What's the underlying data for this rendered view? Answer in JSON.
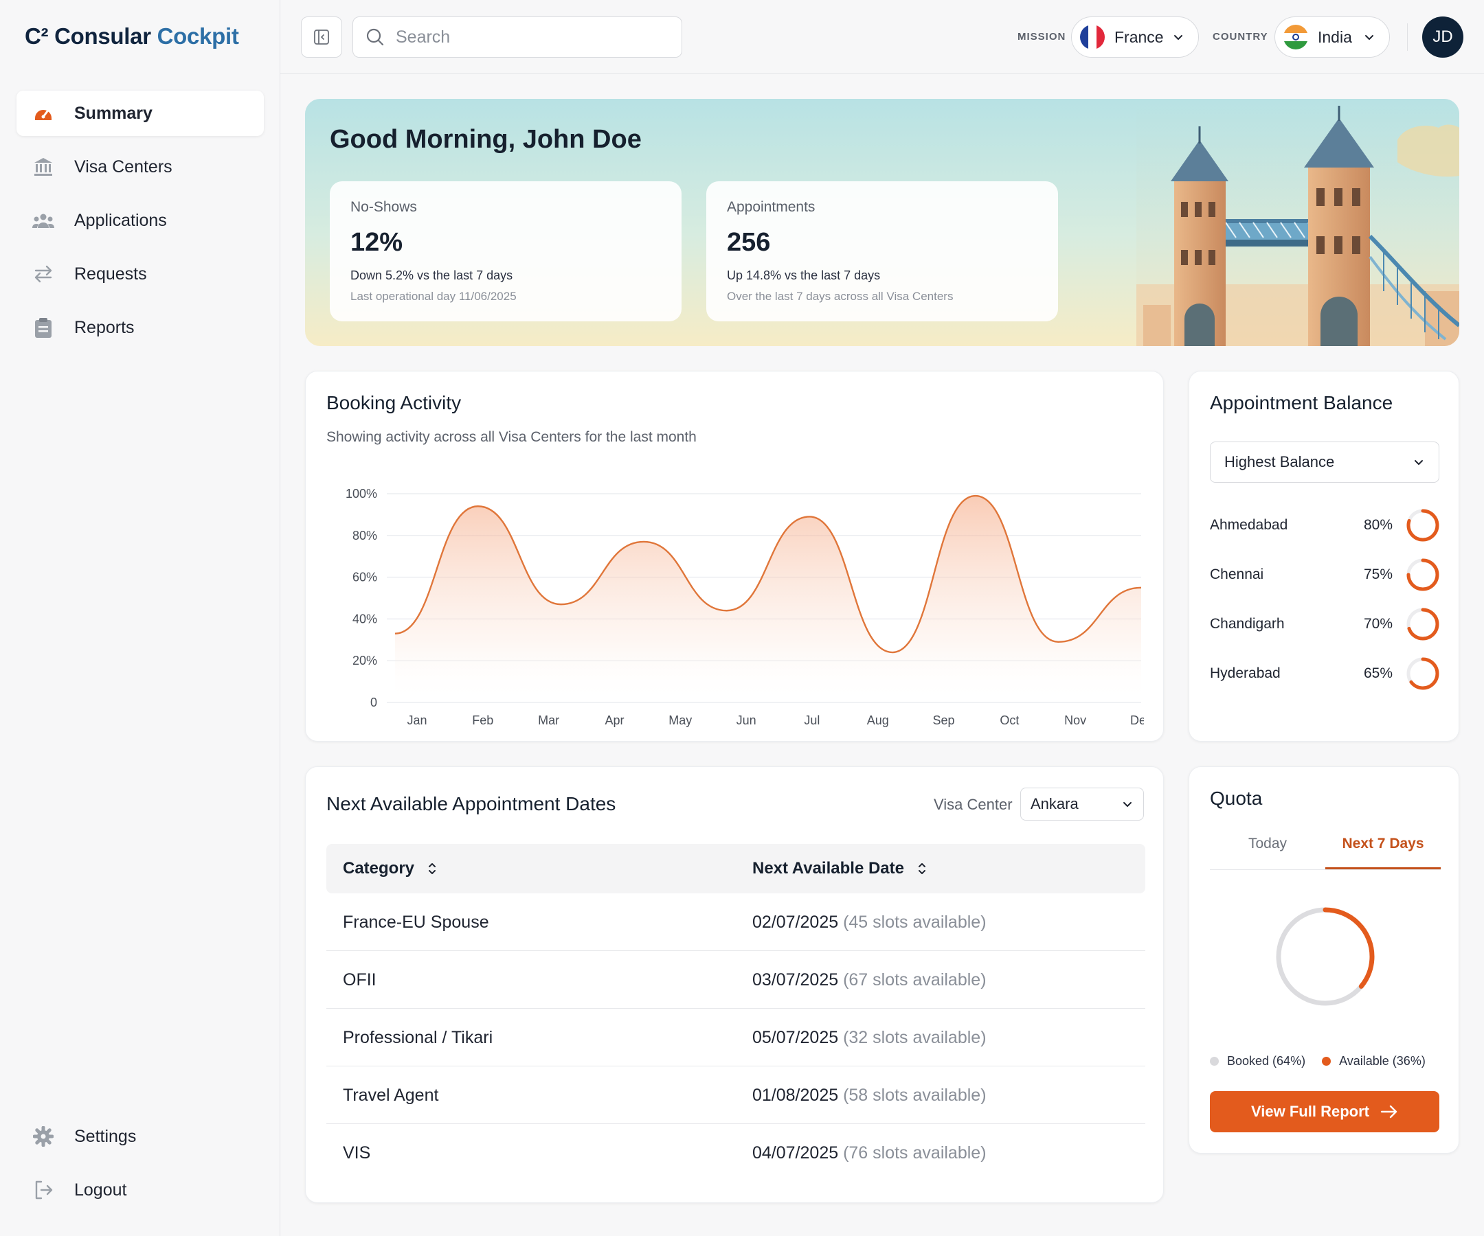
{
  "app": {
    "logo_prefix": "C²",
    "logo_name": "Consular",
    "logo_accent": "Cockpit"
  },
  "sidebar": {
    "items": [
      {
        "label": "Summary",
        "icon": "speedometer-icon",
        "active": true
      },
      {
        "label": "Visa Centers",
        "icon": "bank-icon"
      },
      {
        "label": "Applications",
        "icon": "users-icon"
      },
      {
        "label": "Requests",
        "icon": "arrows-exchange-icon"
      },
      {
        "label": "Reports",
        "icon": "clipboard-icon"
      }
    ],
    "bottom": [
      {
        "label": "Settings",
        "icon": "gear-icon"
      },
      {
        "label": "Logout",
        "icon": "logout-icon"
      }
    ]
  },
  "header": {
    "search_placeholder": "Search",
    "mission_label": "MISSION",
    "mission_value": "France",
    "country_label": "COUNTRY",
    "country_value": "India",
    "avatar_initials": "JD"
  },
  "hero": {
    "greeting": "Good Morning, John Doe",
    "stats": [
      {
        "label": "No-Shows",
        "value": "12%",
        "delta": "Down 5.2% vs the last 7 days",
        "note": "Last operational day 11/06/2025"
      },
      {
        "label": "Appointments",
        "value": "256",
        "delta": "Up 14.8% vs the last 7 days",
        "note": "Over the last 7 days across all Visa Centers"
      }
    ]
  },
  "booking": {
    "title": "Booking Activity",
    "subtitle": "Showing activity across all Visa Centers for the last month"
  },
  "chart_data": {
    "type": "area",
    "categories": [
      "Jan",
      "Feb",
      "Mar",
      "Apr",
      "May",
      "Jun",
      "Jul",
      "Aug",
      "Sep",
      "Oct",
      "Nov",
      "Dec"
    ],
    "y_ticks": [
      "0",
      "20%",
      "40%",
      "60%",
      "80%",
      "100%"
    ],
    "ylim": [
      0,
      100
    ],
    "points": [
      {
        "x": "Dec*",
        "y": 33
      },
      {
        "x": "Feb",
        "y": 94
      },
      {
        "x": "Mar",
        "y": 47
      },
      {
        "x": "Apr/May",
        "y": 77
      },
      {
        "x": "Jun",
        "y": 44
      },
      {
        "x": "Jul",
        "y": 89
      },
      {
        "x": "Aug/Sep",
        "y": 24
      },
      {
        "x": "Oct",
        "y": 99
      },
      {
        "x": "Nov",
        "y": 29
      },
      {
        "x": "Dec+",
        "y": 55
      }
    ],
    "series_color": "#e0763a",
    "grid": true
  },
  "balance": {
    "title": "Appointment Balance",
    "filter": "Highest Balance",
    "rows": [
      {
        "city": "Ahmedabad",
        "pct": "80%",
        "value": 0.8
      },
      {
        "city": "Chennai",
        "pct": "75%",
        "value": 0.75
      },
      {
        "city": "Chandigarh",
        "pct": "70%",
        "value": 0.7
      },
      {
        "city": "Hyderabad",
        "pct": "65%",
        "value": 0.65
      }
    ]
  },
  "appointments": {
    "title": "Next Available Appointment Dates",
    "center_label": "Visa Center",
    "center_value": "Ankara",
    "columns": [
      "Category",
      "Next Available Date"
    ],
    "rows": [
      {
        "category": "France-EU Spouse",
        "date": "02/07/2025",
        "slots": "(45 slots available)"
      },
      {
        "category": "OFII",
        "date": "03/07/2025",
        "slots": "(67 slots available)"
      },
      {
        "category": "Professional / Tikari",
        "date": "05/07/2025",
        "slots": "(32 slots available)"
      },
      {
        "category": "Travel Agent",
        "date": "01/08/2025",
        "slots": "(58 slots available)"
      },
      {
        "category": "VIS",
        "date": "04/07/2025",
        "slots": "(76 slots available)"
      }
    ]
  },
  "quota": {
    "title": "Quota",
    "tabs": [
      "Today",
      "Next 7 Days"
    ],
    "active_tab": "Next 7 Days",
    "booked_label": "Booked (64%)",
    "available_label": "Available (36%)",
    "booked": 0.64,
    "available": 0.36,
    "button": "View Full Report"
  },
  "colors": {
    "accent": "#e35b1d",
    "brand": "#2d6fa6",
    "navy": "#0e2238"
  }
}
